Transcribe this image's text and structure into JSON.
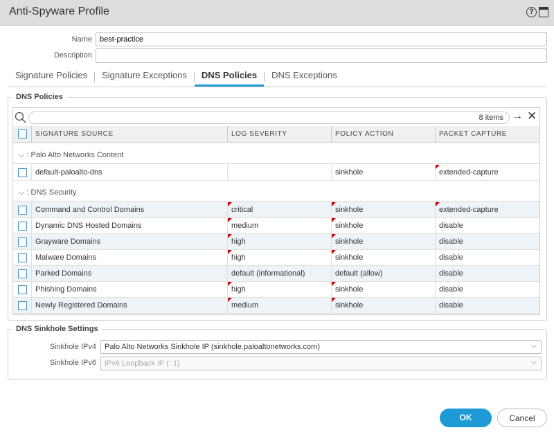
{
  "dialog": {
    "title": "Anti-Spyware Profile",
    "help_icon": "help-icon",
    "maximize_icon": "maximize-icon"
  },
  "form": {
    "name_label": "Name",
    "name_value": "best-practice",
    "description_label": "Description",
    "description_value": ""
  },
  "tabs": [
    {
      "label": "Signature Policies",
      "active": false
    },
    {
      "label": "Signature Exceptions",
      "active": false
    },
    {
      "label": "DNS Policies",
      "active": true
    },
    {
      "label": "DNS Exceptions",
      "active": false
    }
  ],
  "dns_policies": {
    "legend": "DNS Policies",
    "search": {
      "value": "",
      "count": "8 items"
    },
    "columns": [
      "SIGNATURE SOURCE",
      "LOG SEVERITY",
      "POLICY ACTION",
      "PACKET CAPTURE"
    ],
    "groups": [
      {
        "label": ": Palo Alto Networks Content",
        "rows": [
          {
            "source": "default-paloalto-dns",
            "severity": "",
            "action": "sinkhole",
            "capture": "extended-capture",
            "mod": [
              false,
              false,
              true
            ]
          }
        ]
      },
      {
        "label": ": DNS Security",
        "rows": [
          {
            "source": "Command and Control Domains",
            "severity": "critical",
            "action": "sinkhole",
            "capture": "extended-capture",
            "mod": [
              true,
              true,
              true
            ]
          },
          {
            "source": "Dynamic DNS Hosted Domains",
            "severity": "medium",
            "action": "sinkhole",
            "capture": "disable",
            "mod": [
              true,
              true,
              false
            ]
          },
          {
            "source": "Grayware Domains",
            "severity": "high",
            "action": "sinkhole",
            "capture": "disable",
            "mod": [
              true,
              true,
              false
            ]
          },
          {
            "source": "Malware Domains",
            "severity": "high",
            "action": "sinkhole",
            "capture": "disable",
            "mod": [
              true,
              true,
              false
            ]
          },
          {
            "source": "Parked Domains",
            "severity": "default (informational)",
            "action": "default (allow)",
            "capture": "disable",
            "mod": [
              false,
              false,
              false
            ]
          },
          {
            "source": "Phishing Domains",
            "severity": "high",
            "action": "sinkhole",
            "capture": "disable",
            "mod": [
              true,
              true,
              false
            ]
          },
          {
            "source": "Newly Registered Domains",
            "severity": "medium",
            "action": "sinkhole",
            "capture": "disable",
            "mod": [
              true,
              true,
              false
            ]
          }
        ]
      }
    ]
  },
  "sinkhole": {
    "legend": "DNS Sinkhole Settings",
    "ipv4_label": "Sinkhole IPv4",
    "ipv4_value": "Palo Alto Networks Sinkhole IP (sinkhole.paloaltonetworks.com)",
    "ipv6_label": "Sinkhole IPv6",
    "ipv6_value": "IPv6 Loopback IP (::1)"
  },
  "buttons": {
    "ok": "OK",
    "cancel": "Cancel"
  },
  "colors": {
    "accent": "#1e9ad6",
    "modified_marker": "#cc0000"
  }
}
